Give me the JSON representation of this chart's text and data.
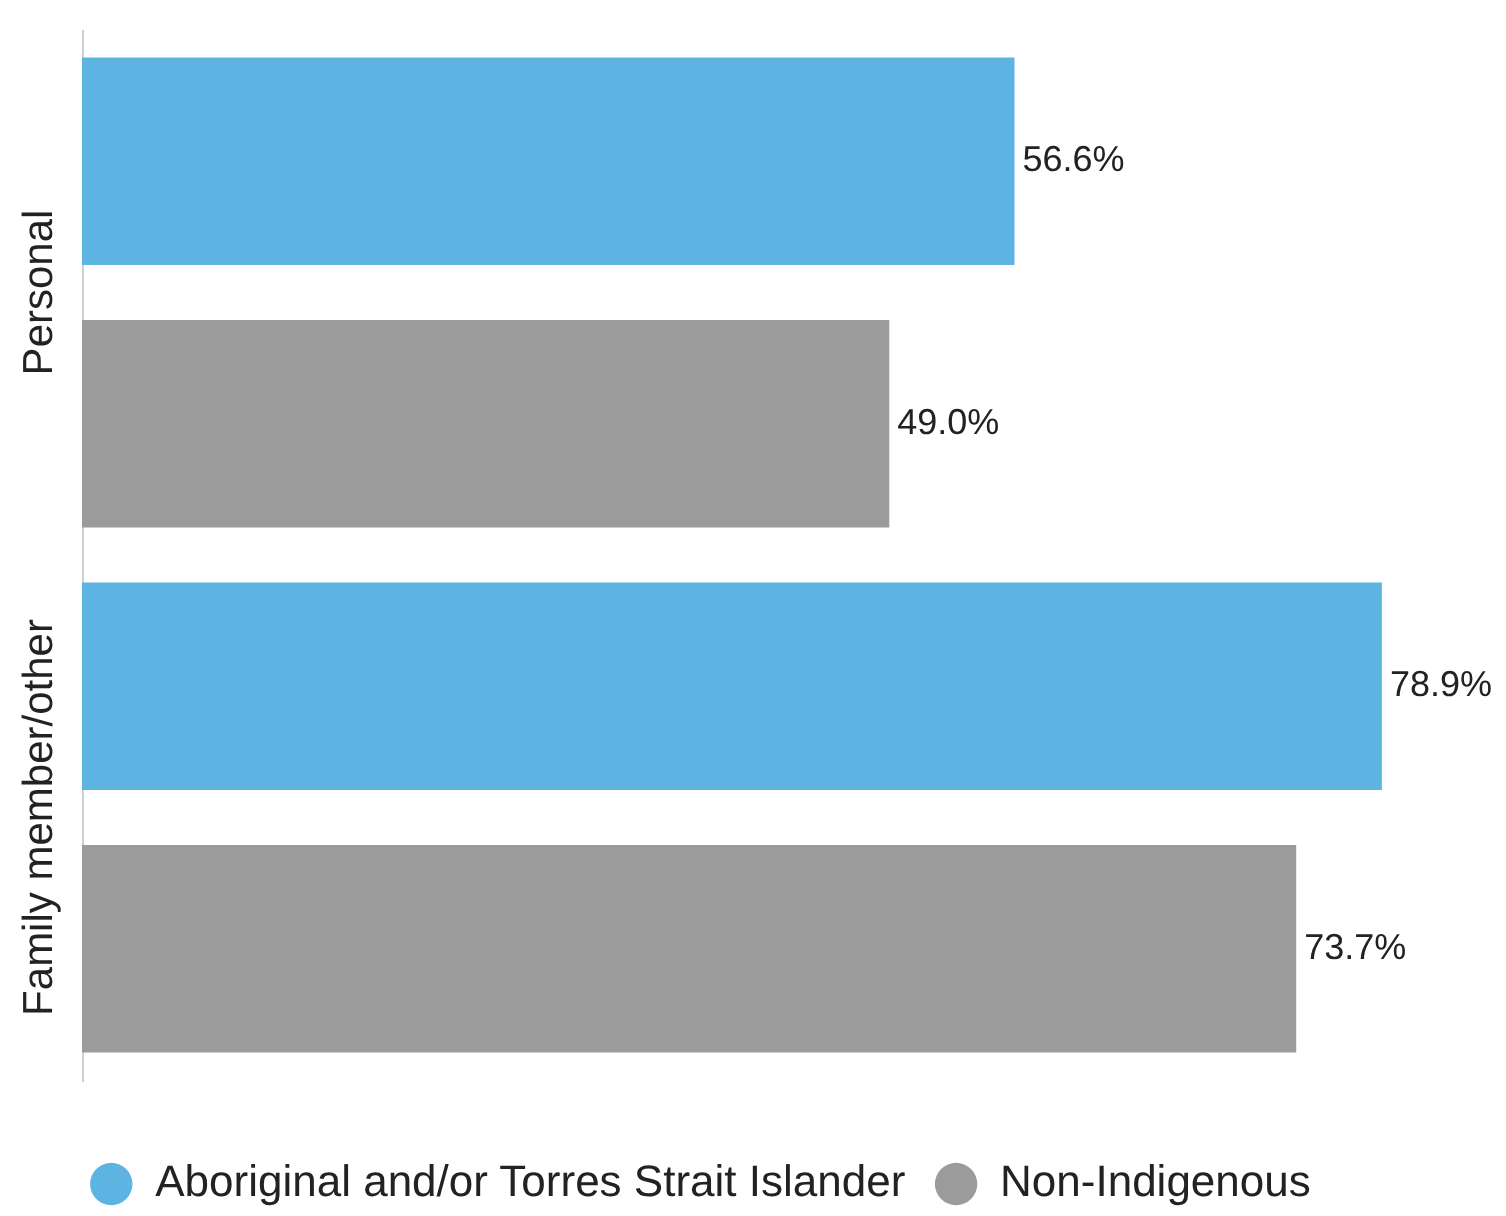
{
  "chart_data": {
    "type": "bar",
    "orientation": "horizontal",
    "categories": [
      "Personal",
      "Family member/other"
    ],
    "series": [
      {
        "name": "Aboriginal and/or Torres Strait Islander",
        "color": "#5db4e3",
        "values": [
          56.6,
          78.9
        ],
        "value_labels": [
          "56.6%",
          "78.9%"
        ]
      },
      {
        "name": "Non-Indigenous",
        "color": "#9b9b9b",
        "values": [
          49.0,
          73.7
        ],
        "value_labels": [
          "49.0%",
          "73.7%"
        ]
      }
    ],
    "legend": "bottom",
    "tick_labels": "y"
  }
}
